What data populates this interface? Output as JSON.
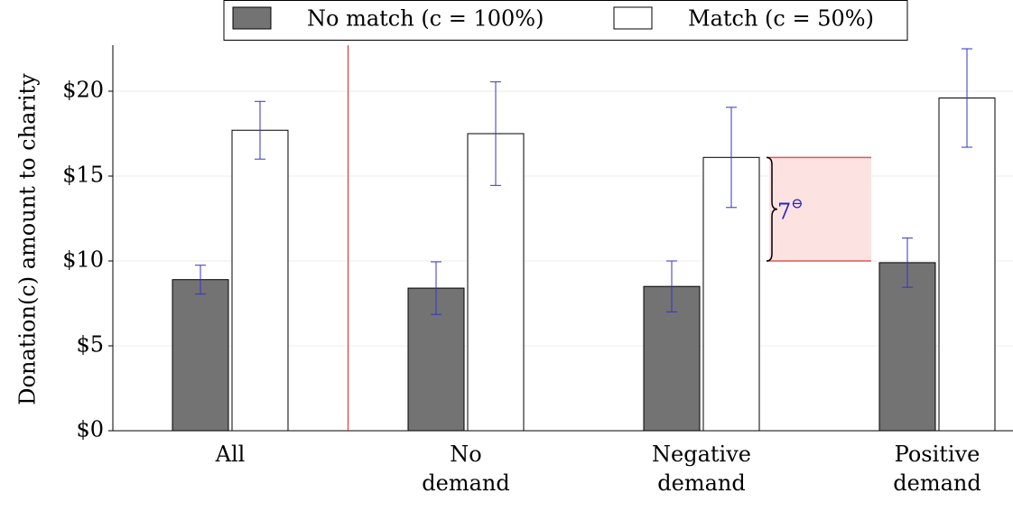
{
  "chart_data": {
    "type": "bar",
    "y_label": "Donation(c) amount to charity",
    "categories": [
      "All",
      "No demand",
      "Negative demand",
      "Positive demand"
    ],
    "series": [
      {
        "name": "No match (c = 100%)",
        "color": "#737373",
        "values": [
          8.9,
          8.4,
          8.5,
          9.9
        ],
        "errors": [
          0.85,
          1.55,
          1.5,
          1.45
        ]
      },
      {
        "name": "Match (c = 50%)",
        "color": "#ffffff",
        "values": [
          17.7,
          17.5,
          16.1,
          19.6
        ],
        "errors": [
          1.7,
          3.05,
          2.95,
          2.9
        ]
      }
    ],
    "error_color": "#3333cc",
    "ylim": [
      0,
      22.5
    ],
    "yticks": [
      {
        "value": 0,
        "label": "$0"
      },
      {
        "value": 5,
        "label": "$5"
      },
      {
        "value": 10,
        "label": "$10"
      },
      {
        "value": 15,
        "label": "$15"
      },
      {
        "value": 20,
        "label": "$20"
      }
    ],
    "grid": true,
    "separator_after": 0,
    "separator_color": "#dd2222",
    "annotation": {
      "label": "7",
      "superscript": "⊖",
      "from": 10,
      "to": 16.1,
      "color": "#2222cc",
      "fill": "#fde2e2",
      "line_color": "#e05555"
    },
    "legend": "top"
  }
}
